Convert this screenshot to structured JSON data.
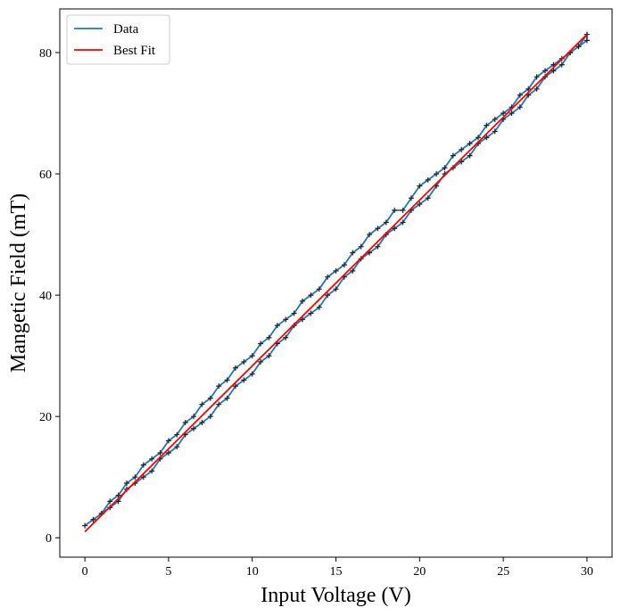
{
  "chart_data": {
    "type": "line",
    "xlabel": "Input Voltage (V)",
    "ylabel": "Mangetic Field (mT)",
    "xlim": [
      -1.5,
      31.5
    ],
    "ylim": [
      -3.2,
      87.2
    ],
    "xticks": [
      0,
      5,
      10,
      15,
      20,
      25,
      30
    ],
    "yticks": [
      0,
      20,
      40,
      60,
      80
    ],
    "grid": false,
    "legend": "upper left",
    "series": [
      {
        "name": "Data",
        "color": "#1f77b4",
        "marker": "+",
        "marker_color": "#222222",
        "x": [
          0,
          0.5,
          1,
          1.5,
          2,
          2.5,
          3,
          3.5,
          4,
          4.5,
          5,
          5.5,
          6,
          6.5,
          7,
          7.5,
          8,
          8.5,
          9,
          9.5,
          10,
          10.5,
          11,
          11.5,
          12,
          12.5,
          13,
          13.5,
          14,
          14.5,
          15,
          15.5,
          16,
          16.5,
          17,
          17.5,
          18,
          18.5,
          19,
          19.5,
          20,
          20.5,
          21,
          21.5,
          22,
          22.5,
          23,
          23.5,
          24,
          24.5,
          25,
          25.5,
          26,
          26.5,
          27,
          27.5,
          28,
          28.5,
          29,
          29.5,
          30,
          30,
          29.5,
          29,
          28.5,
          28,
          27.5,
          27,
          26.5,
          26,
          25.5,
          25,
          24.5,
          24,
          23.5,
          23,
          22.5,
          22,
          21.5,
          21,
          20.5,
          20,
          19.5,
          19,
          18.5,
          18,
          17.5,
          17,
          16.5,
          16,
          15.5,
          15,
          14.5,
          14,
          13.5,
          13,
          12.5,
          12,
          11.5,
          11,
          10.5,
          10,
          9.5,
          9,
          8.5,
          8,
          7.5,
          7,
          6.5,
          6,
          5.5,
          5,
          4.5,
          4,
          3.5,
          3,
          2.5,
          2,
          1.5,
          1,
          0.5
        ],
        "values": [
          2,
          3,
          4,
          6,
          7,
          9,
          10,
          12,
          13,
          14,
          16,
          17,
          19,
          20,
          22,
          23,
          25,
          26,
          28,
          29,
          30,
          32,
          33,
          35,
          36,
          37,
          39,
          40,
          41,
          43,
          44,
          45,
          47,
          48,
          50,
          51,
          52,
          54,
          54,
          56,
          58,
          59,
          60,
          61,
          63,
          64,
          65,
          66,
          68,
          69,
          70,
          71,
          73,
          74,
          76,
          77,
          78,
          79,
          80,
          81,
          83,
          82,
          81,
          80,
          78,
          77,
          76,
          74,
          73,
          71,
          70,
          69,
          67,
          66,
          65,
          63,
          62,
          61,
          60,
          58,
          56,
          55,
          54,
          52,
          51,
          50,
          48,
          47,
          46,
          44,
          43,
          41,
          40,
          38,
          37,
          36,
          35,
          33,
          32,
          30,
          29,
          27,
          26,
          25,
          23,
          22,
          20,
          19,
          18,
          17,
          15,
          14,
          13,
          11,
          10,
          9,
          8,
          6,
          5,
          4,
          3
        ]
      },
      {
        "name": "Best Fit",
        "color": "#ff0000",
        "x": [
          0,
          30
        ],
        "values": [
          1,
          83
        ]
      }
    ]
  }
}
